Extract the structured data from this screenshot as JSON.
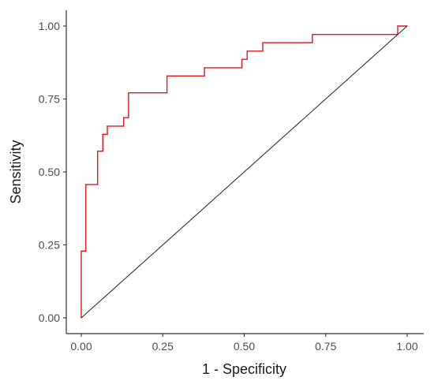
{
  "chart_data": {
    "type": "line",
    "title": "",
    "xlabel": "1 - Specificity",
    "ylabel": "Sensitivity",
    "xlim": [
      0,
      1
    ],
    "ylim": [
      0,
      1
    ],
    "x_ticks": [
      0,
      0.25,
      0.5,
      0.75,
      1
    ],
    "x_tick_labels": [
      "0.00",
      "0.25",
      "0.50",
      "0.75",
      "1.00"
    ],
    "y_ticks": [
      0,
      0.25,
      0.5,
      0.75,
      1
    ],
    "y_tick_labels": [
      "0.00",
      "0.25",
      "0.50",
      "0.75",
      "1.00"
    ],
    "grid": false,
    "legend": "none",
    "series": [
      {
        "color": "#e8141c",
        "style": "step",
        "x": [
          0.0,
          0.0,
          0.014,
          0.014,
          0.05,
          0.05,
          0.066,
          0.066,
          0.08,
          0.08,
          0.13,
          0.13,
          0.145,
          0.145,
          0.263,
          0.263,
          0.378,
          0.378,
          0.493,
          0.493,
          0.509,
          0.509,
          0.557,
          0.557,
          0.709,
          0.709,
          0.971,
          0.971,
          1.0
        ],
        "y": [
          0.0,
          0.229,
          0.229,
          0.457,
          0.457,
          0.571,
          0.571,
          0.629,
          0.629,
          0.657,
          0.657,
          0.686,
          0.686,
          0.771,
          0.771,
          0.829,
          0.829,
          0.857,
          0.857,
          0.886,
          0.886,
          0.914,
          0.914,
          0.943,
          0.943,
          0.971,
          0.971,
          1.0,
          1.0
        ]
      },
      {
        "color": "#333333",
        "style": "reference",
        "x": [
          0,
          1
        ],
        "y": [
          0,
          1
        ]
      }
    ]
  }
}
